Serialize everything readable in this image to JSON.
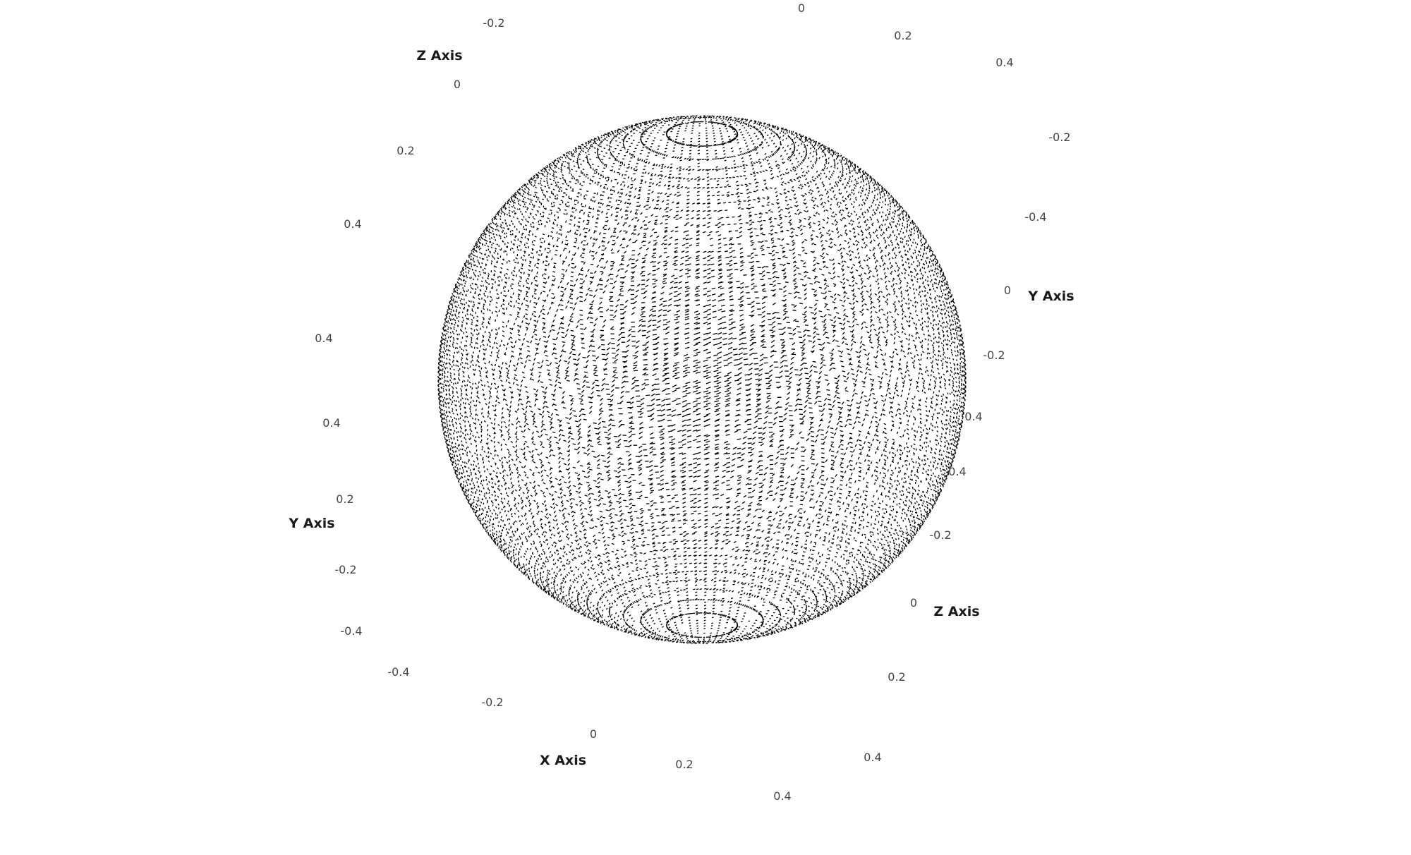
{
  "chart_data": {
    "type": "scatter",
    "dimensions": "3d",
    "shape": "sphere",
    "grid": false,
    "legend": "none",
    "marker_color": "#000000",
    "background_color": "#ffffff",
    "x_axis": {
      "title": "X Axis",
      "range": [
        -0.5,
        0.5
      ],
      "ticks": [
        "-0.4",
        "-0.2",
        "0",
        "0.2",
        "0.4"
      ]
    },
    "y_axis": {
      "title": "Y Axis",
      "range": [
        -0.5,
        0.5
      ],
      "ticks_left": [
        "-0.4",
        "-0.2",
        "0",
        "0.2",
        "0.4"
      ],
      "ticks_right": [
        "-0.4",
        "-0.2",
        "0",
        "0.2",
        "0.4"
      ]
    },
    "z_axis": {
      "title": "Z Axis",
      "range": [
        -0.5,
        0.5
      ],
      "ticks_top": [
        "-0.2",
        "0",
        "0.2",
        "0.4",
        "0.4"
      ],
      "ticks_right": [
        "-0.2",
        "0",
        "0.2",
        "0.4",
        "0.4"
      ]
    },
    "point_cloud": {
      "center": [
        0,
        0,
        0
      ],
      "radius": 0.5,
      "density": "dense"
    }
  }
}
